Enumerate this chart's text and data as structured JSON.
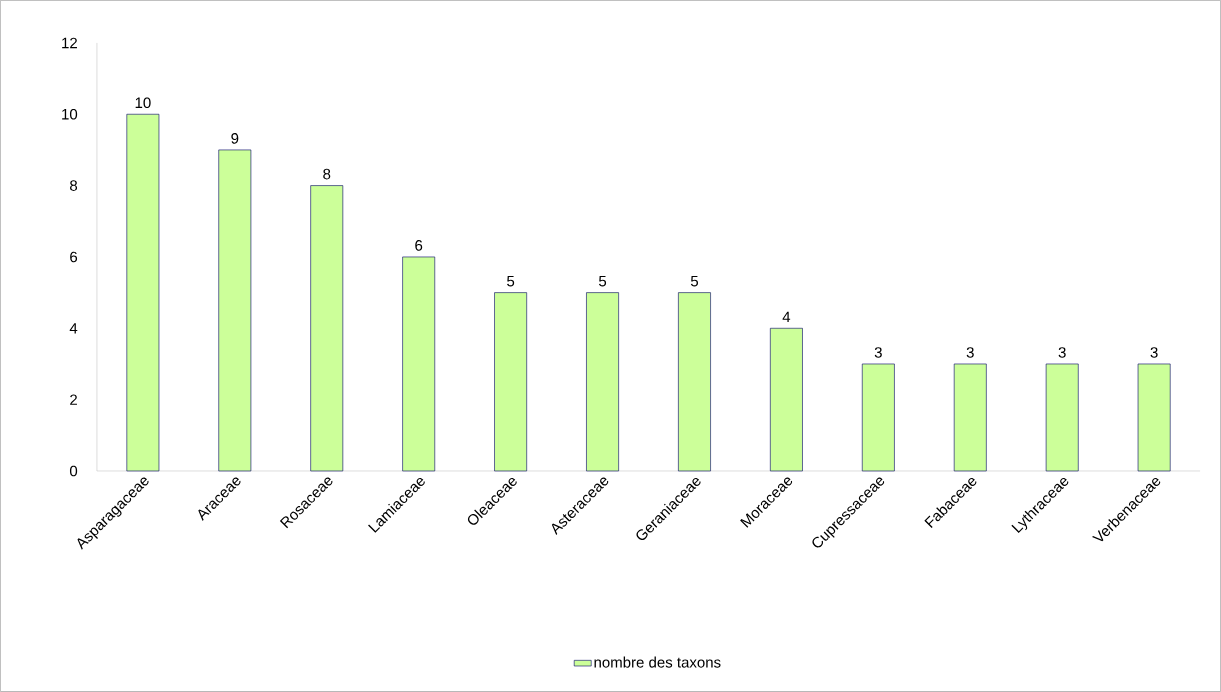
{
  "chart_data": {
    "type": "bar",
    "categories": [
      "Asparagaceae",
      "Araceae",
      "Rosaceae",
      "Lamiaceae",
      "Oleaceae",
      "Asteraceae",
      "Geraniaceae",
      "Moraceae",
      "Cupressaceae",
      "Fabaceae",
      "Lythraceae",
      "Verbenaceae"
    ],
    "series": [
      {
        "name": "nombre des taxons",
        "color": "#ccff99",
        "values": [
          10,
          9,
          8,
          6,
          5,
          5,
          5,
          4,
          3,
          3,
          3,
          3
        ]
      }
    ],
    "ylim": [
      0,
      12
    ],
    "yticks": [
      0,
      2,
      4,
      6,
      8,
      10,
      12
    ],
    "grid": false,
    "legend": "bottom",
    "data_labels": true
  }
}
